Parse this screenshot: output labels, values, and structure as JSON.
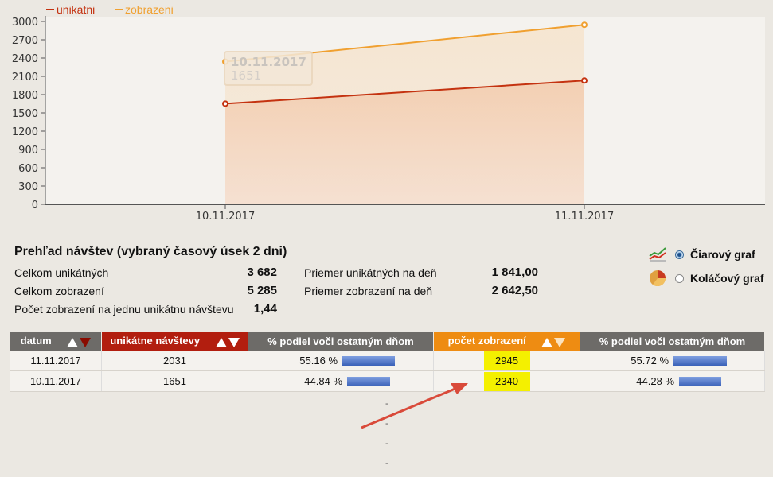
{
  "chart_data": {
    "type": "area",
    "categories": [
      "10.11.2017",
      "11.11.2017"
    ],
    "series": [
      {
        "name": "unikatni",
        "values": [
          1651,
          2031
        ],
        "color": "#c43210"
      },
      {
        "name": "zobrazeni",
        "values": [
          2340,
          2945
        ],
        "color": "#f0a030"
      }
    ],
    "yticks": [
      0,
      300,
      600,
      900,
      1200,
      1500,
      1800,
      2100,
      2400,
      2700,
      3000
    ],
    "ylim": [
      0,
      3000
    ],
    "grid": false,
    "legend": "top-left",
    "tooltip": {
      "date": "10.11.2017",
      "value": "1651"
    }
  },
  "summary": {
    "title": "Prehľad návštev (vybraný časový úsek 2 dni)",
    "left": [
      {
        "label": "Celkom unikátných",
        "value": "3 682"
      },
      {
        "label": "Celkom zobrazení",
        "value": "5 285"
      },
      {
        "label": "Počet zobrazení na jednu unikátnu návštevu",
        "value": "1,44"
      }
    ],
    "right": [
      {
        "label": "Priemer unikátných na deň",
        "value": "1 841,00"
      },
      {
        "label": "Priemer zobrazení na deň",
        "value": "2 642,50"
      }
    ]
  },
  "graph_options": {
    "line": "Čiarový graf",
    "pie": "Koláčový graf",
    "selected": "line"
  },
  "table": {
    "headers": [
      "datum",
      "unikátne návštevy",
      "% podiel voči ostatným dňom",
      "počet zobrazení",
      "% podiel voči ostatným dňom"
    ],
    "rows": [
      {
        "date": "11.11.2017",
        "unique": "2031",
        "unique_pct": "55.16 %",
        "unique_frac": 0.5516,
        "views": "2945",
        "views_pct": "55.72 %",
        "views_frac": 0.5572
      },
      {
        "date": "10.11.2017",
        "unique": "1651",
        "unique_pct": "44.84 %",
        "unique_frac": 0.4484,
        "views": "2340",
        "views_pct": "44.28 %",
        "views_frac": 0.4428
      }
    ],
    "empty_rows": [
      "-",
      "-",
      "-",
      "-"
    ]
  },
  "colors": {
    "unique": "#b21e0f",
    "views": "#ee8c12",
    "highlight": "#f4f000",
    "arrow": "#d94a3a"
  }
}
